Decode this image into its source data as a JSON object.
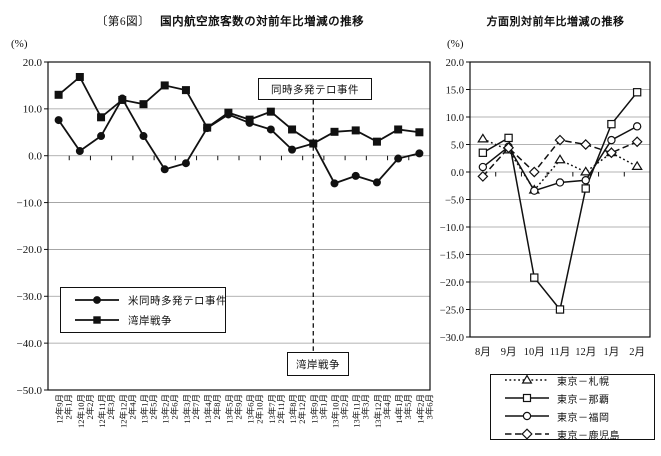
{
  "document": {
    "figure_label": "〔第6図〕",
    "unit_label": "(%)"
  },
  "chart_data": [
    {
      "type": "line",
      "title": "国内航空旅客数の対前年比増減の推移",
      "title_prefix": "〔第6図〕",
      "unit": "(%)",
      "ylim": [
        -50,
        20
      ],
      "ytick_step": 10,
      "yticks": [
        "20.0",
        "10.0",
        "0.0",
        "-10.0",
        "-20.0",
        "-30.0",
        "-40.0",
        "-50.0"
      ],
      "grid": "horizontal",
      "legend_position": "inside-lower-left",
      "categories": [
        [
          "12年9月",
          "2年1月"
        ],
        [
          "12年10月",
          "2年2月"
        ],
        [
          "12年11月",
          "2年3月"
        ],
        [
          "12年12月",
          "2年4月"
        ],
        [
          "13年1月",
          "2年5月"
        ],
        [
          "13年2月",
          "2年6月"
        ],
        [
          "13年3月",
          "2年7月"
        ],
        [
          "13年4月",
          "2年8月"
        ],
        [
          "13年5月",
          "2年9月"
        ],
        [
          "13年6月",
          "2年10月"
        ],
        [
          "13年7月",
          "2年11月"
        ],
        [
          "13年8月",
          "2年12月"
        ],
        [
          "13年9月",
          "3年1月"
        ],
        [
          "13年10月",
          "3年2月"
        ],
        [
          "13年11月",
          "3年3月"
        ],
        [
          "13年12月",
          "3年4月"
        ],
        [
          "14年1月",
          "3年5月"
        ],
        [
          "14年2月",
          "3年6月"
        ]
      ],
      "series": [
        {
          "name": "米同時多発テロ事件",
          "marker": "circle",
          "fill": "black",
          "line": "solid",
          "values": [
            7.6,
            1.0,
            4.2,
            12.2,
            4.2,
            -2.9,
            -1.6,
            5.9,
            8.8,
            7.0,
            5.6,
            1.3,
            2.6,
            -5.9,
            -4.3,
            -5.7,
            -0.6,
            0.5
          ]
        },
        {
          "name": "湾岸戦争",
          "marker": "square",
          "fill": "black",
          "line": "solid",
          "values": [
            13.0,
            16.8,
            8.2,
            11.9,
            11.0,
            15.0,
            14.0,
            6.0,
            9.2,
            7.7,
            9.4,
            5.6,
            2.6,
            5.1,
            5.4,
            3.0,
            5.6,
            5.0
          ]
        }
      ],
      "annotations": {
        "top": "同時多発テロ事件",
        "bottom": "湾岸戦争",
        "category_index": 12
      }
    },
    {
      "type": "line",
      "title": "方面別対前年比増減の推移",
      "unit": "(%)",
      "ylim": [
        -30,
        20
      ],
      "ytick_step": 5,
      "yticks": [
        "20.0",
        "15.0",
        "10.0",
        "5.0",
        "0.0",
        "-5.0",
        "-10.0",
        "-15.0",
        "-20.0",
        "-25.0",
        "-30.0"
      ],
      "grid": "horizontal",
      "legend_position": "below",
      "categories": [
        "8月",
        "9月",
        "10月",
        "11月",
        "12月",
        "1月",
        "2月"
      ],
      "series": [
        {
          "name": "東京－札幌",
          "marker": "triangle",
          "fill": "white",
          "line": "dotted",
          "values": [
            6.0,
            4.0,
            -3.3,
            2.2,
            0.0,
            3.5,
            1.0
          ]
        },
        {
          "name": "東京－那覇",
          "marker": "square",
          "fill": "white",
          "line": "solid",
          "values": [
            3.5,
            6.2,
            -19.2,
            -25.0,
            -3.0,
            8.7,
            14.5
          ]
        },
        {
          "name": "東京－福岡",
          "marker": "circle",
          "fill": "white",
          "line": "solid",
          "values": [
            0.9,
            4.6,
            -3.4,
            -1.9,
            -1.5,
            5.8,
            8.3
          ]
        },
        {
          "name": "東京－鹿児島",
          "marker": "diamond",
          "fill": "white",
          "line": "dashed",
          "values": [
            -0.8,
            4.4,
            0.0,
            5.8,
            5.0,
            3.5,
            5.5
          ]
        }
      ]
    }
  ]
}
